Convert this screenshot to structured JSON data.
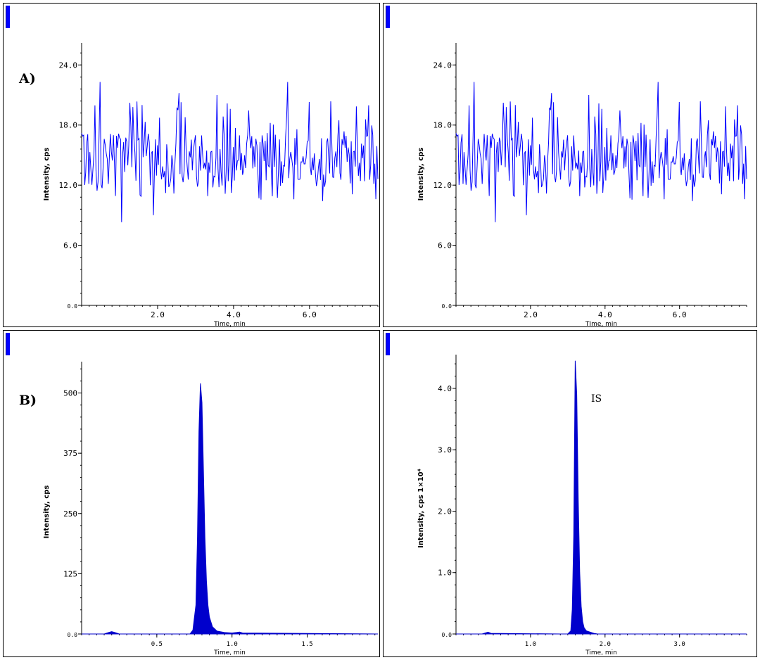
{
  "panel_labels": {
    "a": "A)",
    "b": "B)"
  },
  "chart_data": [
    {
      "type": "line",
      "xlabel": "Time, min",
      "ylabel": "Intensity, cps",
      "xlim": [
        0.0,
        7.8
      ],
      "ylim": [
        0,
        26.2
      ],
      "xticks": [
        2.0,
        4.0,
        6.0
      ],
      "xtick_labels": [
        "2.0",
        "4.0",
        "6.0"
      ],
      "yticks": [
        0,
        6,
        12,
        18,
        24
      ],
      "ytick_labels": [
        "0.0",
        "6.0",
        "12.0",
        "18.0",
        "24.0"
      ],
      "color": "#0000ff",
      "series": [
        {
          "x": [
            0.0,
            0.0
          ],
          "y": [
            15.1,
            15.1
          ]
        }
      ]
    },
    {
      "type": "line",
      "xlabel": "TIme, min",
      "ylabel": "Intensity, cps",
      "xlim": [
        0.0,
        7.8
      ],
      "ylim": [
        0,
        26.2
      ],
      "xticks": [
        2.0,
        4.0,
        6.0
      ],
      "xtick_labels": [
        "2.0",
        "4.0",
        "6.0"
      ],
      "yticks": [
        0,
        6,
        12,
        18,
        24
      ],
      "ytick_labels": [
        "0.0",
        "6.0",
        "12.0",
        "18.0",
        "24.0"
      ],
      "color": "#0000ff",
      "series": [
        {
          "x": [
            0.0,
            0.0
          ],
          "y": [
            15.1,
            15.1
          ]
        }
      ]
    },
    {
      "type": "area",
      "xlabel": "Time, min",
      "ylabel": "Intensity, cps",
      "xlim": [
        0.0,
        1.97
      ],
      "ylim": [
        0,
        565
      ],
      "xticks": [
        0.5,
        1.0,
        1.5
      ],
      "xtick_labels": [
        "0.5",
        "1.0",
        "1.5"
      ],
      "yticks": [
        0,
        125,
        250,
        375,
        500
      ],
      "ytick_labels": [
        "0.0",
        "125",
        "250",
        "375",
        "500"
      ],
      "color": "#0000cc",
      "series": [
        {
          "x": [
            0.0,
            0.15,
            0.18,
            0.2,
            0.22,
            0.25,
            0.6,
            0.72,
            0.74,
            0.76,
            0.77,
            0.78,
            0.79,
            0.8,
            0.81,
            0.82,
            0.83,
            0.84,
            0.85,
            0.87,
            0.9,
            0.95,
            1.0,
            1.03,
            1.05,
            1.07,
            1.97
          ],
          "y": [
            0,
            0,
            3,
            5,
            3,
            0,
            0,
            0,
            8,
            60,
            200,
            420,
            520,
            480,
            340,
            200,
            110,
            60,
            35,
            15,
            6,
            3,
            2,
            3,
            4,
            2,
            0
          ]
        }
      ]
    },
    {
      "type": "area",
      "xlabel": "Time, min",
      "ylabel": "Intensity, cps 1×10⁴",
      "xlim": [
        0.0,
        3.9
      ],
      "ylim": [
        0,
        4.55
      ],
      "xticks": [
        1.0,
        2.0,
        3.0
      ],
      "xtick_labels": [
        "1.0",
        "2.0",
        "3.0"
      ],
      "yticks": [
        0,
        1,
        2,
        3,
        4
      ],
      "ytick_labels": [
        "0.0",
        "1.0",
        "2.0",
        "3.0",
        "4.0"
      ],
      "annotation": "IS",
      "color": "#0000cc",
      "series": [
        {
          "x": [
            0.0,
            0.35,
            0.4,
            0.43,
            0.47,
            1.4,
            1.5,
            1.54,
            1.56,
            1.58,
            1.6,
            1.62,
            1.64,
            1.66,
            1.68,
            1.7,
            1.72,
            1.75,
            1.8,
            1.85,
            1.9,
            3.9
          ],
          "y": [
            0,
            0,
            0.02,
            0.03,
            0.01,
            0,
            0,
            0.05,
            0.4,
            1.6,
            4.45,
            3.9,
            2.2,
            1.0,
            0.45,
            0.2,
            0.1,
            0.05,
            0.03,
            0.01,
            0,
            0
          ]
        }
      ]
    }
  ]
}
